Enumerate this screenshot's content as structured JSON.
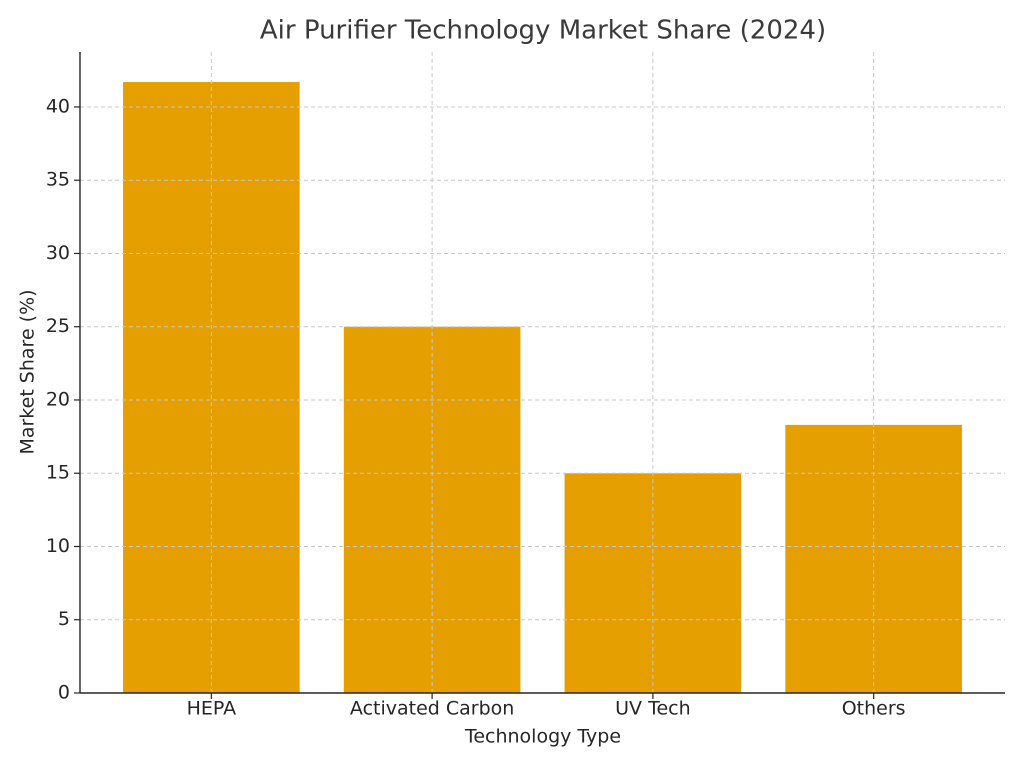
{
  "chart_data": {
    "type": "bar",
    "title": "Air Purifier Technology Market Share (2024)",
    "x_label": "Technology Type",
    "y_label": "Market Share (%)",
    "categories": [
      "HEPA",
      "Activated Carbon",
      "UV Tech",
      "Others"
    ],
    "values": [
      41.7,
      25,
      15,
      18.3
    ],
    "color": "#e69f00",
    "ylim": [
      0,
      43.75
    ],
    "yticks": [
      0,
      5,
      10,
      15,
      20,
      25,
      30,
      35,
      40
    ],
    "grid": true
  }
}
